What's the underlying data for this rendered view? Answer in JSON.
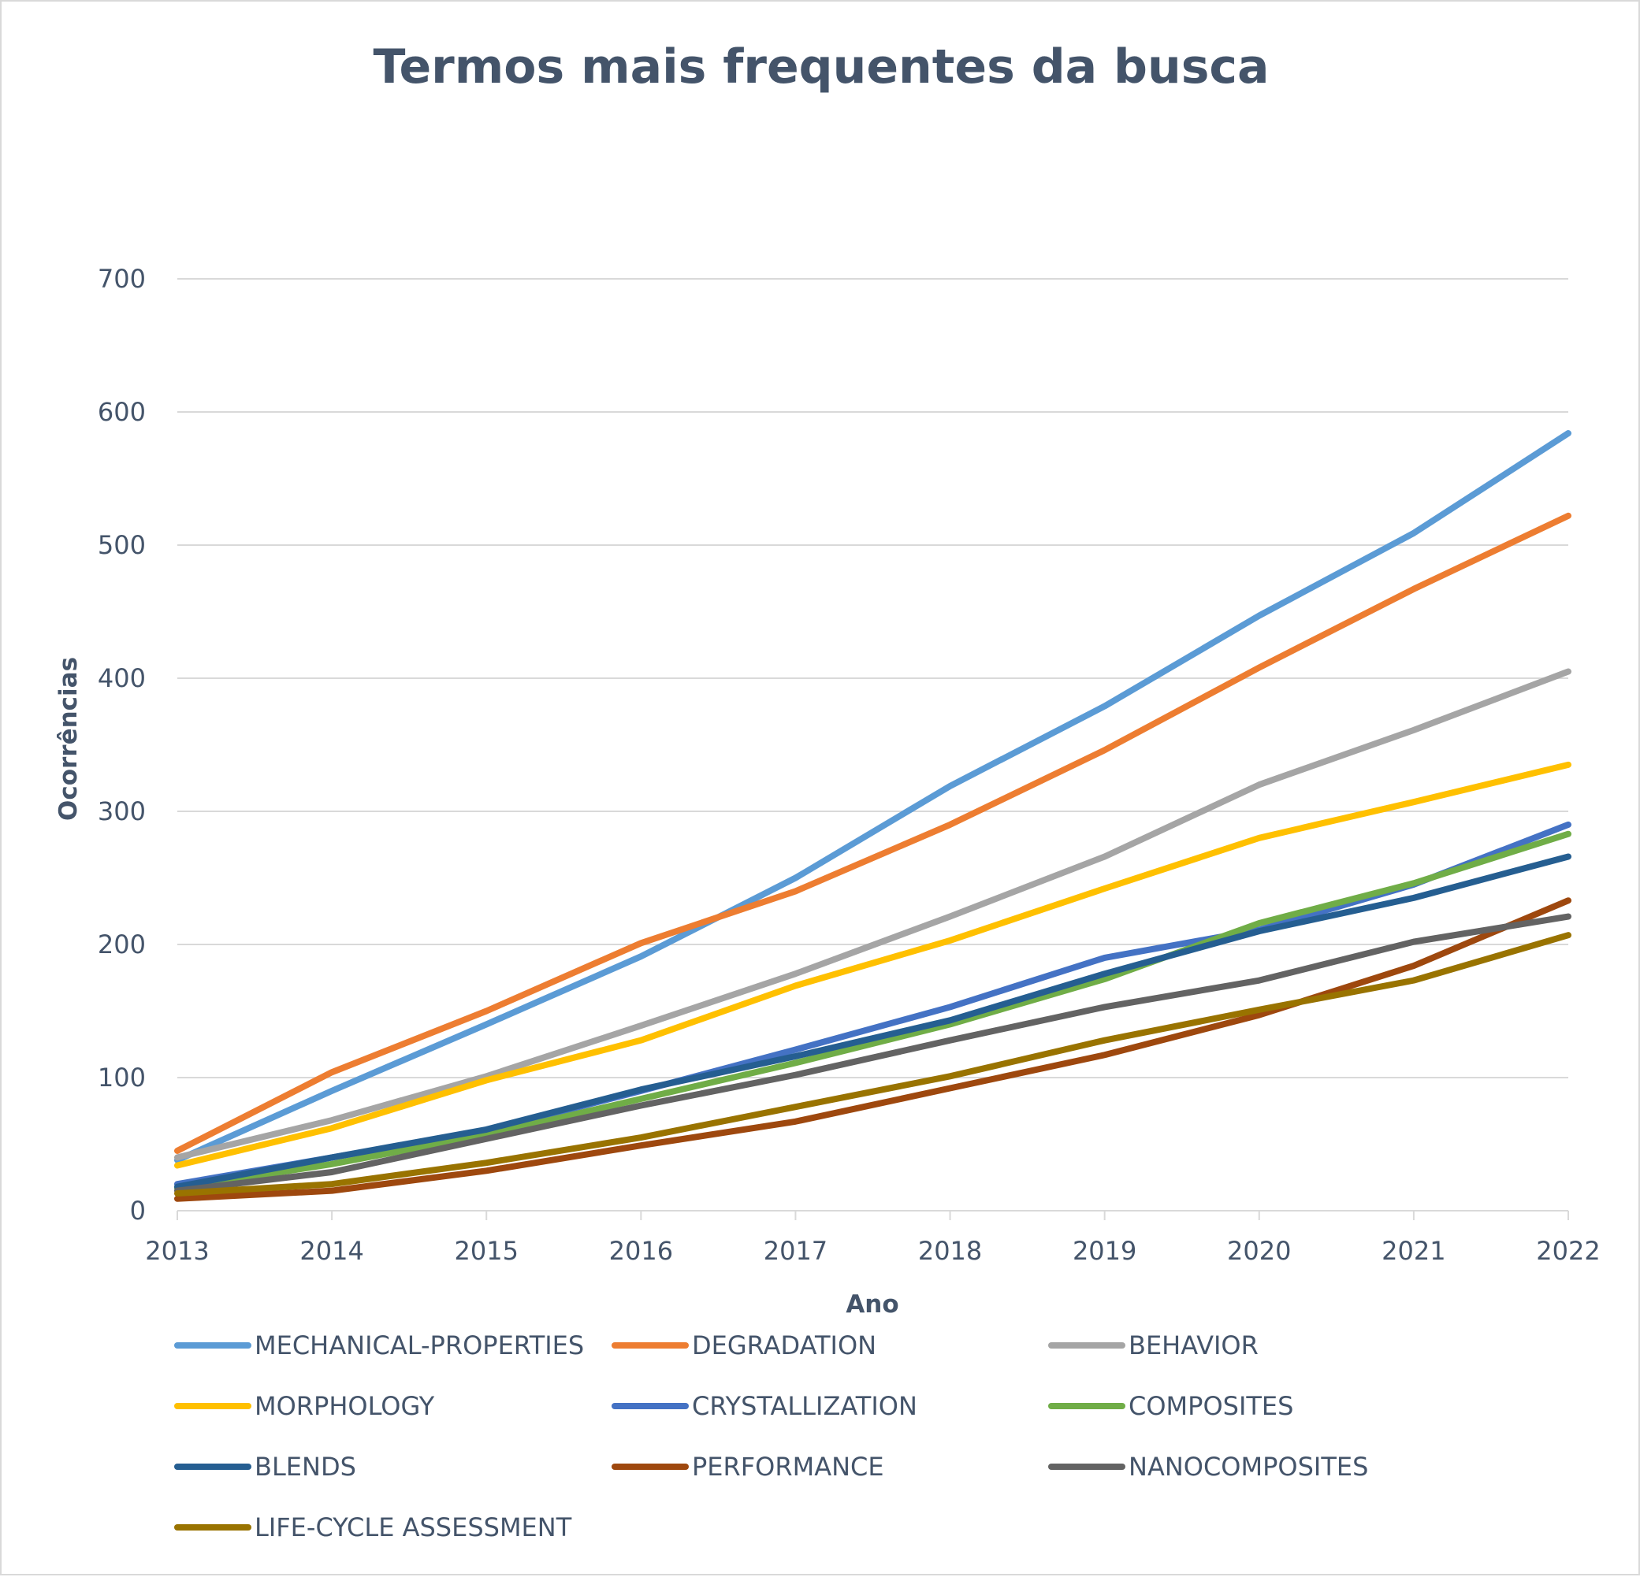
{
  "chart_data": {
    "type": "line",
    "title": "Termos mais frequentes da busca",
    "xlabel": "Ano",
    "ylabel": "Ocorrências",
    "ylim": [
      0,
      700
    ],
    "y_ticks": [
      0,
      100,
      200,
      300,
      400,
      500,
      600,
      700
    ],
    "grid": true,
    "legend_position": "bottom",
    "categories": [
      "2013",
      "2014",
      "2015",
      "2016",
      "2017",
      "2018",
      "2019",
      "2020",
      "2021",
      "2022"
    ],
    "series": [
      {
        "name": "MECHANICAL-PROPERTIES",
        "color": "#5b9bd5",
        "values": [
          38,
          90,
          140,
          191,
          250,
          319,
          379,
          447,
          509,
          584
        ]
      },
      {
        "name": "DEGRADATION",
        "color": "#ed7d31",
        "values": [
          45,
          104,
          150,
          201,
          240,
          290,
          346,
          408,
          467,
          522
        ]
      },
      {
        "name": "BEHAVIOR",
        "color": "#a5a5a5",
        "values": [
          40,
          68,
          101,
          139,
          178,
          221,
          266,
          320,
          361,
          405
        ]
      },
      {
        "name": "MORPHOLOGY",
        "color": "#ffc000",
        "values": [
          34,
          62,
          98,
          128,
          169,
          203,
          242,
          280,
          307,
          335
        ]
      },
      {
        "name": "CRYSTALLIZATION",
        "color": "#4472c4",
        "values": [
          20,
          40,
          60,
          90,
          121,
          153,
          190,
          211,
          245,
          290
        ]
      },
      {
        "name": "COMPOSITES",
        "color": "#70ad47",
        "values": [
          17,
          35,
          57,
          84,
          111,
          140,
          174,
          216,
          246,
          283
        ]
      },
      {
        "name": "BLENDS",
        "color": "#255e91",
        "values": [
          18,
          40,
          61,
          91,
          116,
          143,
          178,
          210,
          235,
          266
        ]
      },
      {
        "name": "PERFORMANCE",
        "color": "#9e480e",
        "values": [
          9,
          15,
          30,
          49,
          67,
          92,
          117,
          147,
          184,
          233
        ]
      },
      {
        "name": "NANOCOMPOSITES",
        "color": "#636363",
        "values": [
          15,
          29,
          54,
          79,
          102,
          128,
          153,
          173,
          202,
          221
        ]
      },
      {
        "name": "LIFE-CYCLE ASSESSMENT",
        "color": "#997300",
        "values": [
          13,
          20,
          36,
          55,
          78,
          101,
          128,
          151,
          173,
          207
        ]
      }
    ]
  }
}
